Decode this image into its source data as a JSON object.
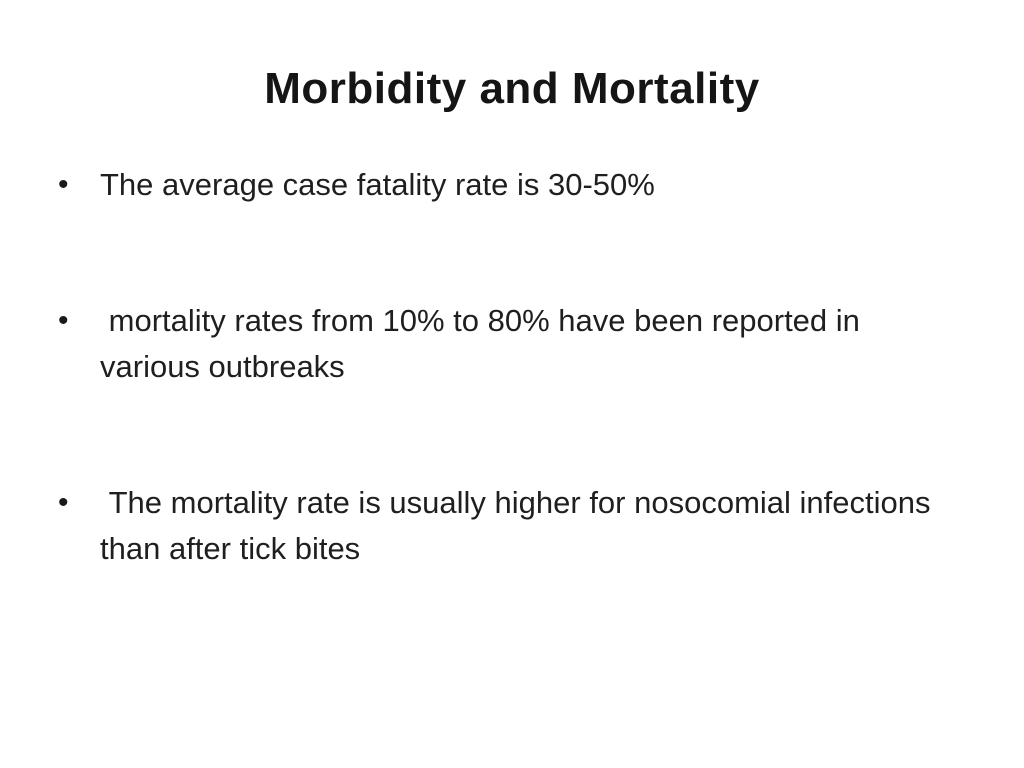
{
  "slide": {
    "title": "Morbidity and Mortality",
    "bullet_glyph": "•",
    "bullets": [
      {
        "text": "The average case fatality rate is 30-50%"
      },
      {
        "text": " mortality rates from 10% to 80% have been reported in various outbreaks"
      },
      {
        "text": " The mortality rate is usually higher for nosocomial infections than after tick bites"
      }
    ]
  }
}
